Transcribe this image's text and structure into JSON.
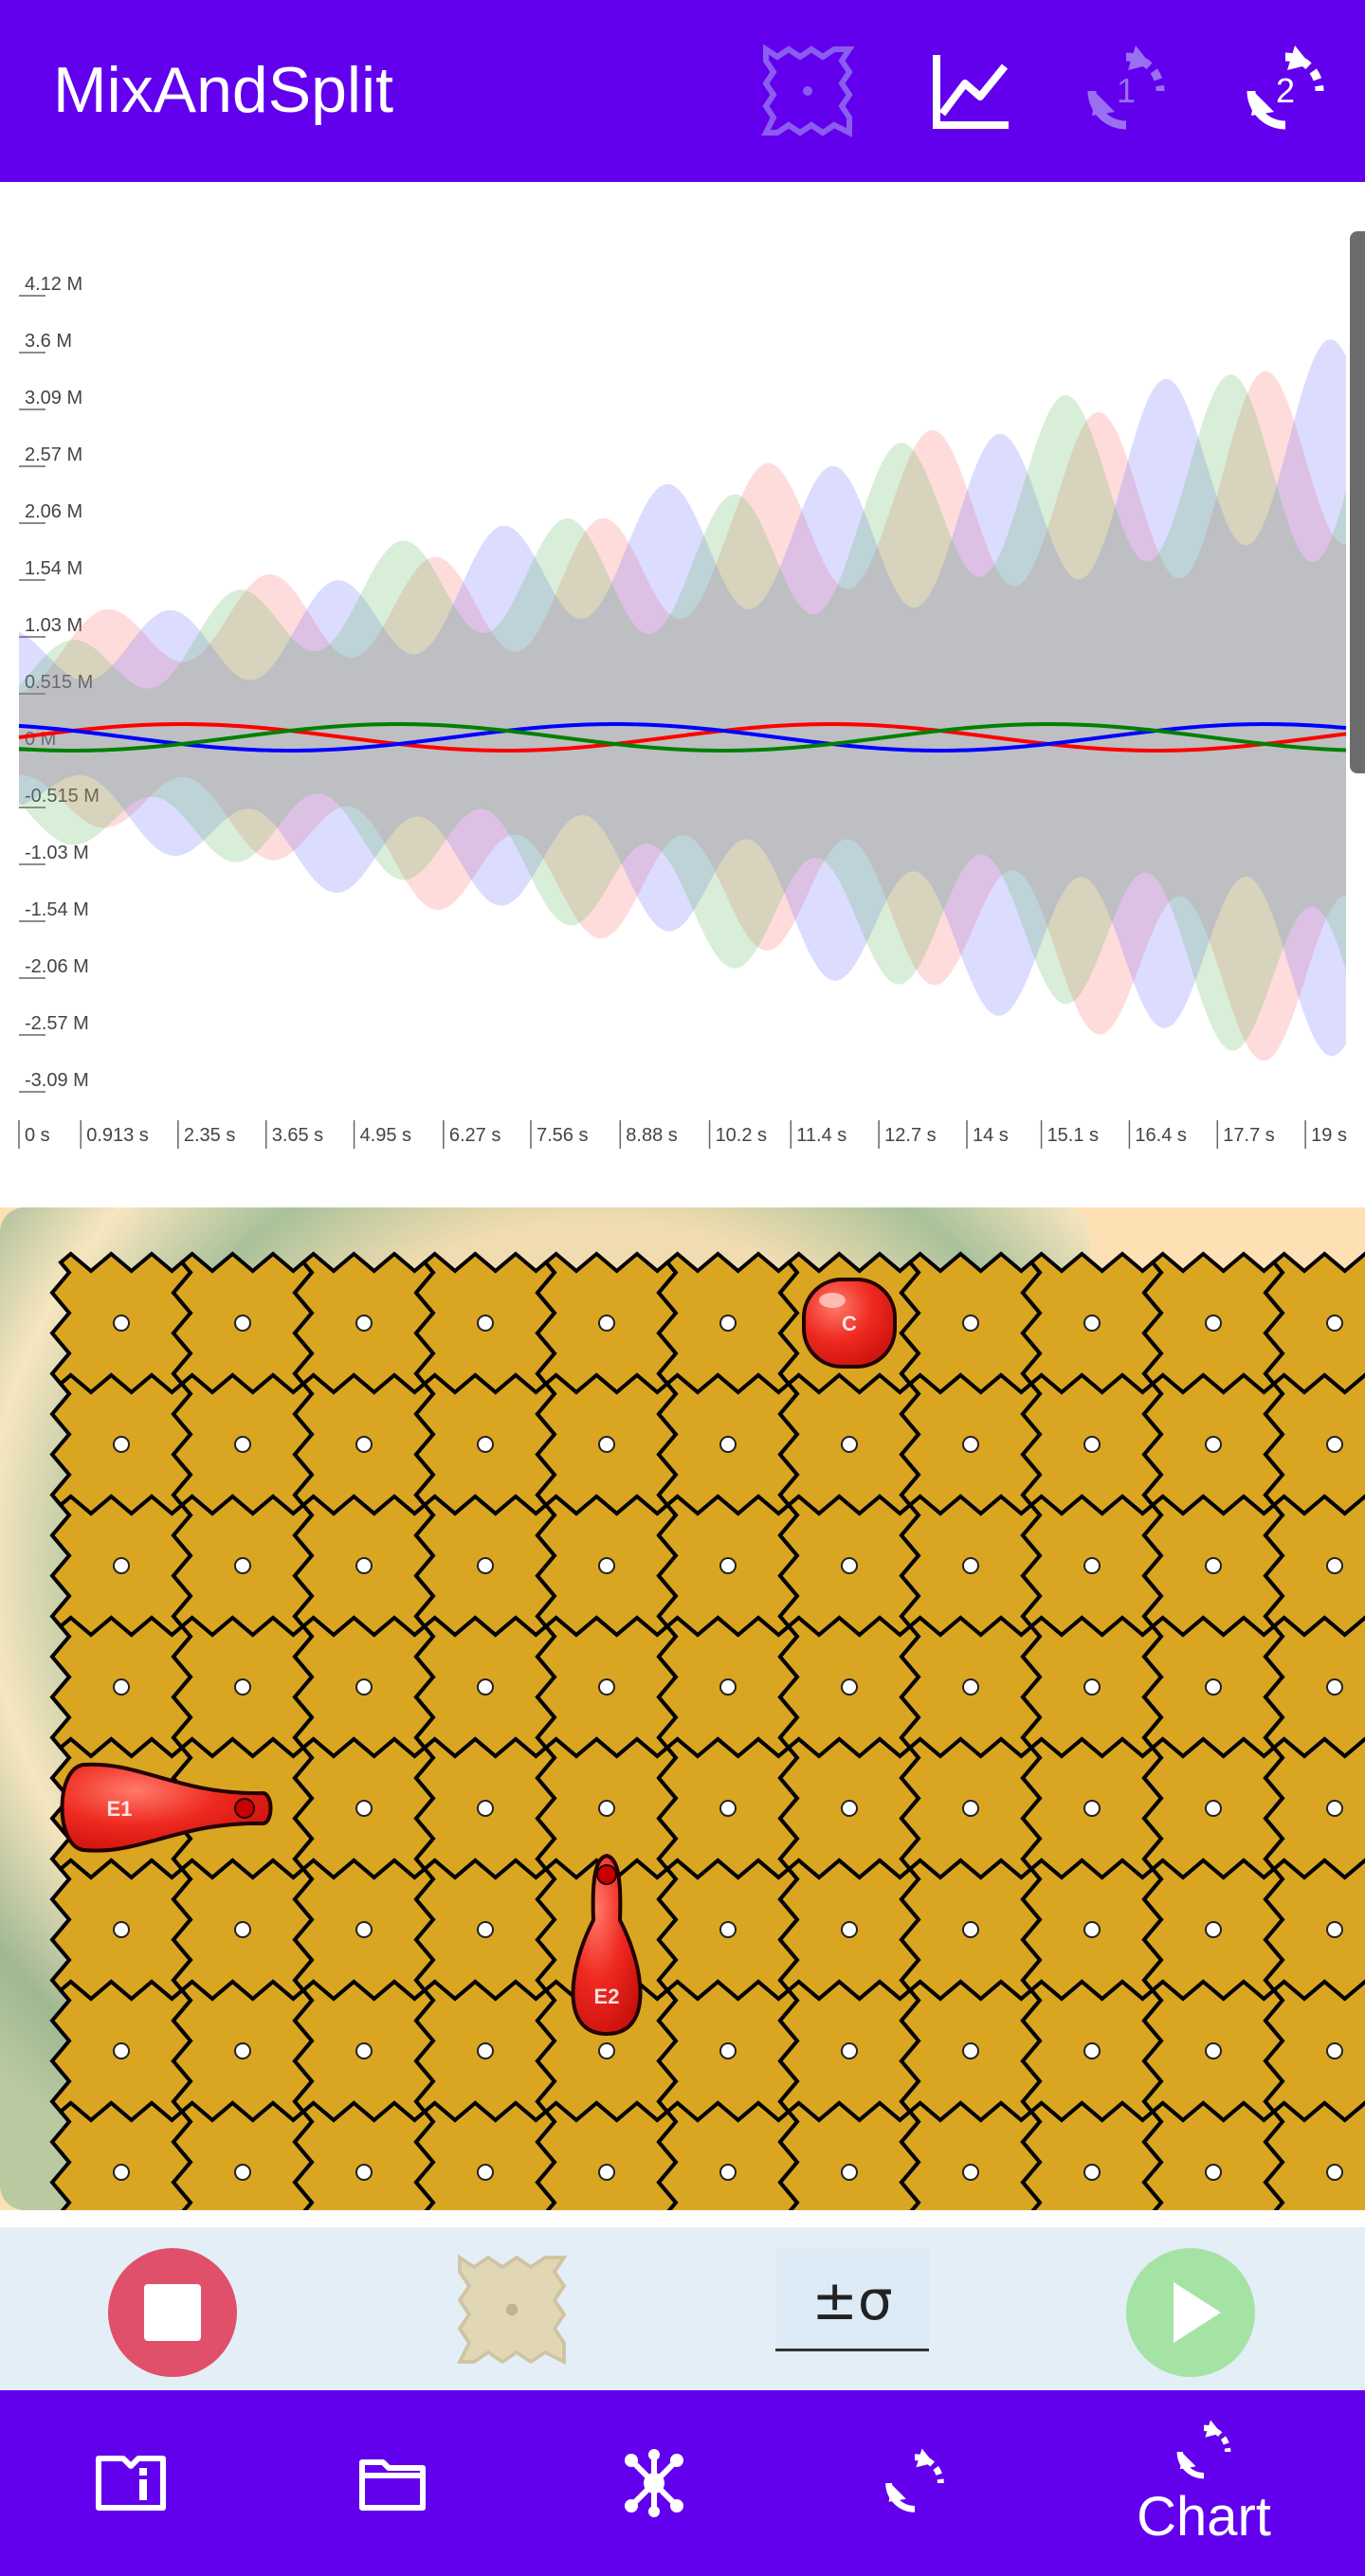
{
  "app": {
    "title": "MixAndSplit"
  },
  "appbar": {
    "actions": [
      {
        "name": "electrode-icon",
        "badge": ""
      },
      {
        "name": "chart-line-icon",
        "badge": ""
      },
      {
        "name": "rotate-1-icon",
        "badge": "1"
      },
      {
        "name": "rotate-2-icon",
        "badge": "2"
      }
    ]
  },
  "chart_data": {
    "type": "area",
    "title": "",
    "xlabel": "",
    "ylabel": "",
    "x_ticks": [
      "0 s",
      "0.913 s",
      "2.35 s",
      "3.65 s",
      "4.95 s",
      "6.27 s",
      "7.56 s",
      "8.88 s",
      "10.2 s",
      "11.4 s",
      "12.7 s",
      "14 s",
      "15.1 s",
      "16.4 s",
      "17.7 s",
      "19 s"
    ],
    "y_ticks": [
      "4.12 M",
      "3.6 M",
      "3.09 M",
      "2.57 M",
      "2.06 M",
      "1.54 M",
      "1.03 M",
      "0.515 M",
      "0 M",
      "-0.515 M",
      "-1.03 M",
      "-1.54 M",
      "-2.06 M",
      "-2.57 M",
      "-3.09 M"
    ],
    "ylim": [
      -3.09,
      4.12
    ],
    "xlim": [
      0,
      19.6
    ],
    "series": [
      {
        "color": "#ff0000",
        "fill": "#ff6b6b",
        "phase": 0.0
      },
      {
        "color": "#0000ff",
        "fill": "#6b6bff",
        "phase": 2.094
      },
      {
        "color": "#008000",
        "fill": "#5aba5a",
        "phase": 4.188
      }
    ]
  },
  "board": {
    "columns": 11,
    "rows": 8,
    "droplets": [
      {
        "name": "droplet-c",
        "label": "C",
        "shape": "round",
        "col": 6,
        "row": 0
      },
      {
        "name": "droplet-e1",
        "label": "E1",
        "shape": "horizontal",
        "col": 0,
        "row": 4
      },
      {
        "name": "droplet-e2",
        "label": "E2",
        "shape": "vertical",
        "col": 4,
        "row": 5
      }
    ]
  },
  "toolbar": {
    "stop": "stop-button",
    "electrode": "electrode-button",
    "sigma_label": "±σ",
    "play": "play-button"
  },
  "bottom_nav": [
    {
      "name": "nav-info",
      "icon": "info-book-icon",
      "label": ""
    },
    {
      "name": "nav-files",
      "icon": "folder-icon",
      "label": ""
    },
    {
      "name": "nav-graph",
      "icon": "network-icon",
      "label": ""
    },
    {
      "name": "nav-rotate",
      "icon": "rotate-icon",
      "label": ""
    },
    {
      "name": "nav-chart",
      "icon": "rotate-chart-icon",
      "label": "Chart"
    }
  ],
  "colors": {
    "primary": "#6200ee",
    "electrode": "#daa520",
    "droplet": "#ee2222",
    "stop": "#e0506a",
    "play": "#a5e3a5"
  }
}
